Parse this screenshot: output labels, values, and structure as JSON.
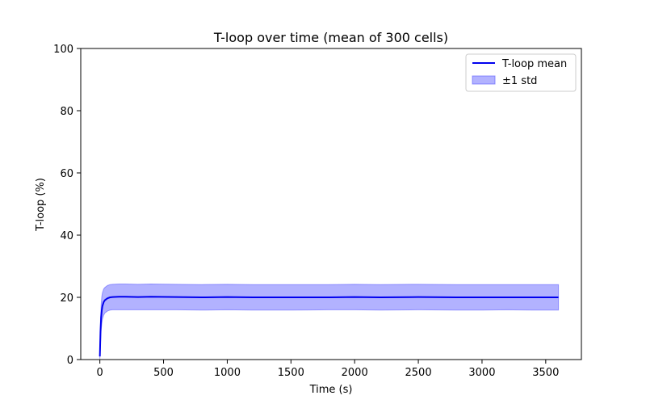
{
  "chart_data": {
    "type": "line",
    "title": "T-loop over time (mean of 300 cells)",
    "xlabel": "Time (s)",
    "ylabel": "T-loop (%)",
    "xlim": [
      -150,
      3780
    ],
    "ylim": [
      0,
      100
    ],
    "xticks": [
      0,
      500,
      1000,
      1500,
      2000,
      2500,
      3000,
      3500
    ],
    "yticks": [
      0,
      20,
      40,
      60,
      80,
      100
    ],
    "xtick_labels": [
      "0",
      "500",
      "1000",
      "1500",
      "2000",
      "2500",
      "3000",
      "3500"
    ],
    "ytick_labels": [
      "0",
      "20",
      "40",
      "60",
      "80",
      "100"
    ],
    "grid": false,
    "legend": {
      "position": "top-right",
      "entries": [
        {
          "label": "T-loop mean",
          "kind": "line",
          "color": "#0000ee"
        },
        {
          "label": "±1 std",
          "kind": "band",
          "color": "#5555ff"
        }
      ]
    },
    "series": [
      {
        "name": "T-loop mean",
        "color": "#0000ee",
        "x": [
          0,
          5,
          10,
          15,
          20,
          30,
          40,
          60,
          80,
          100,
          150,
          200,
          300,
          400,
          600,
          800,
          1000,
          1200,
          1500,
          1800,
          2000,
          2200,
          2500,
          2800,
          3000,
          3200,
          3400,
          3600
        ],
        "y": [
          1.0,
          9.0,
          13.5,
          15.8,
          17.2,
          18.5,
          19.1,
          19.7,
          20.0,
          20.1,
          20.2,
          20.2,
          20.1,
          20.2,
          20.1,
          20.0,
          20.1,
          20.0,
          20.0,
          20.0,
          20.1,
          20.0,
          20.1,
          20.0,
          20.0,
          20.0,
          20.0,
          20.0
        ]
      }
    ],
    "band": {
      "name": "±1 std",
      "color": "#5555ff",
      "x": [
        0,
        5,
        10,
        15,
        20,
        30,
        40,
        60,
        80,
        100,
        150,
        200,
        300,
        400,
        600,
        800,
        1000,
        1200,
        1500,
        1800,
        2000,
        2200,
        2500,
        2800,
        3000,
        3200,
        3400,
        3600
      ],
      "lower": [
        0.3,
        5.5,
        9.5,
        11.5,
        13.0,
        14.3,
        15.0,
        15.6,
        15.9,
        16.0,
        16.0,
        16.0,
        16.0,
        16.0,
        16.0,
        15.9,
        16.0,
        15.9,
        15.9,
        16.0,
        16.0,
        15.9,
        16.0,
        15.9,
        15.9,
        16.0,
        15.9,
        15.9
      ],
      "upper": [
        1.7,
        12.5,
        17.5,
        20.1,
        21.4,
        22.7,
        23.2,
        23.8,
        24.1,
        24.2,
        24.3,
        24.3,
        24.2,
        24.3,
        24.2,
        24.1,
        24.2,
        24.1,
        24.1,
        24.1,
        24.2,
        24.1,
        24.2,
        24.1,
        24.1,
        24.1,
        24.1,
        24.1
      ]
    }
  }
}
